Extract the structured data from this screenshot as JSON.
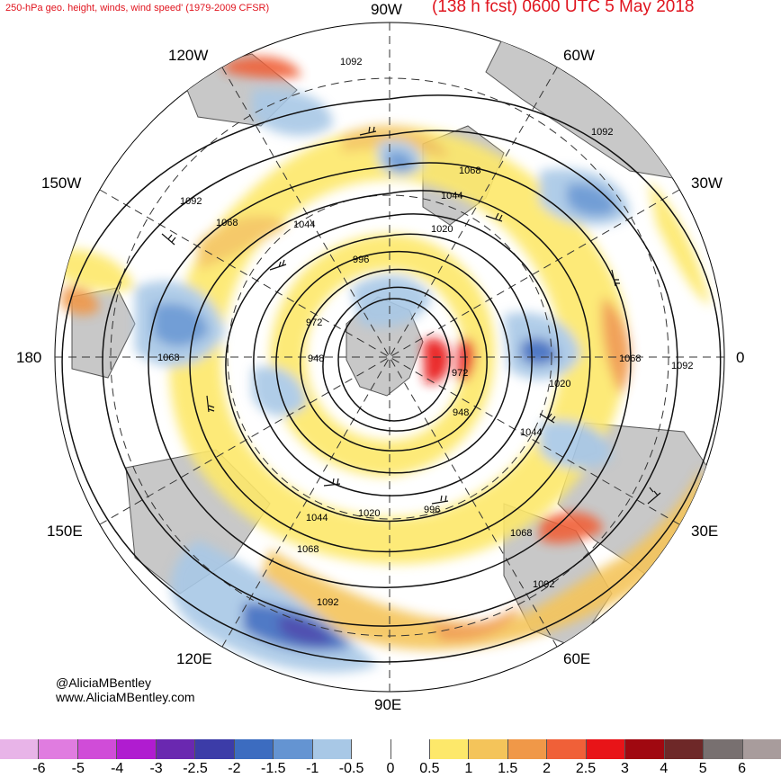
{
  "header": {
    "title_left": "250-hPa geo. height, winds, wind speed' (1979-2009 CFSR)",
    "title_right": "(138 h fcst) 0600 UTC 5 May 2018"
  },
  "map": {
    "longitude_labels": {
      "top": "90W",
      "bottom": "90E",
      "left": "180",
      "right": "0",
      "upper_left_1": "120W",
      "upper_right_1": "60W",
      "upper_left_2": "150W",
      "upper_right_2": "30W",
      "lower_left_1": "150E",
      "lower_right_1": "30E",
      "lower_left_2": "120E",
      "lower_right_2": "60E"
    },
    "contour_labels": [
      "1092",
      "1092",
      "1068",
      "1044",
      "1020",
      "996",
      "972",
      "948",
      "972",
      "948",
      "1020",
      "1044",
      "1068",
      "1092",
      "1092",
      "1068",
      "1044",
      "1020",
      "996",
      "1044",
      "1068",
      "1092",
      "1068",
      "1092",
      "1068"
    ],
    "colors": {
      "land": "#c8c8c8",
      "coast": "#555555",
      "contour": "#111111"
    }
  },
  "credits": {
    "handle": "@AliciaMBentley",
    "website": "www.AliciaMBentley.com"
  },
  "colorbar": {
    "colors": [
      "#e8b4e8",
      "#e07ce0",
      "#d04cd8",
      "#b01cd0",
      "#6a28b0",
      "#3c3ca8",
      "#3c6cc0",
      "#6494d2",
      "#a8c8e6",
      "#ffffff",
      "#ffffff",
      "#fde86a",
      "#f4c45a",
      "#f09848",
      "#f06038",
      "#e81418",
      "#a00810",
      "#6e2828",
      "#787070",
      "#a89c9c"
    ],
    "tick_labels": [
      "-6",
      "-5",
      "-4",
      "-3",
      "-2.5",
      "-2",
      "-1.5",
      "-1",
      "-0.5",
      "0",
      "0.5",
      "1",
      "1.5",
      "2",
      "2.5",
      "3",
      "4",
      "5",
      "6"
    ]
  }
}
